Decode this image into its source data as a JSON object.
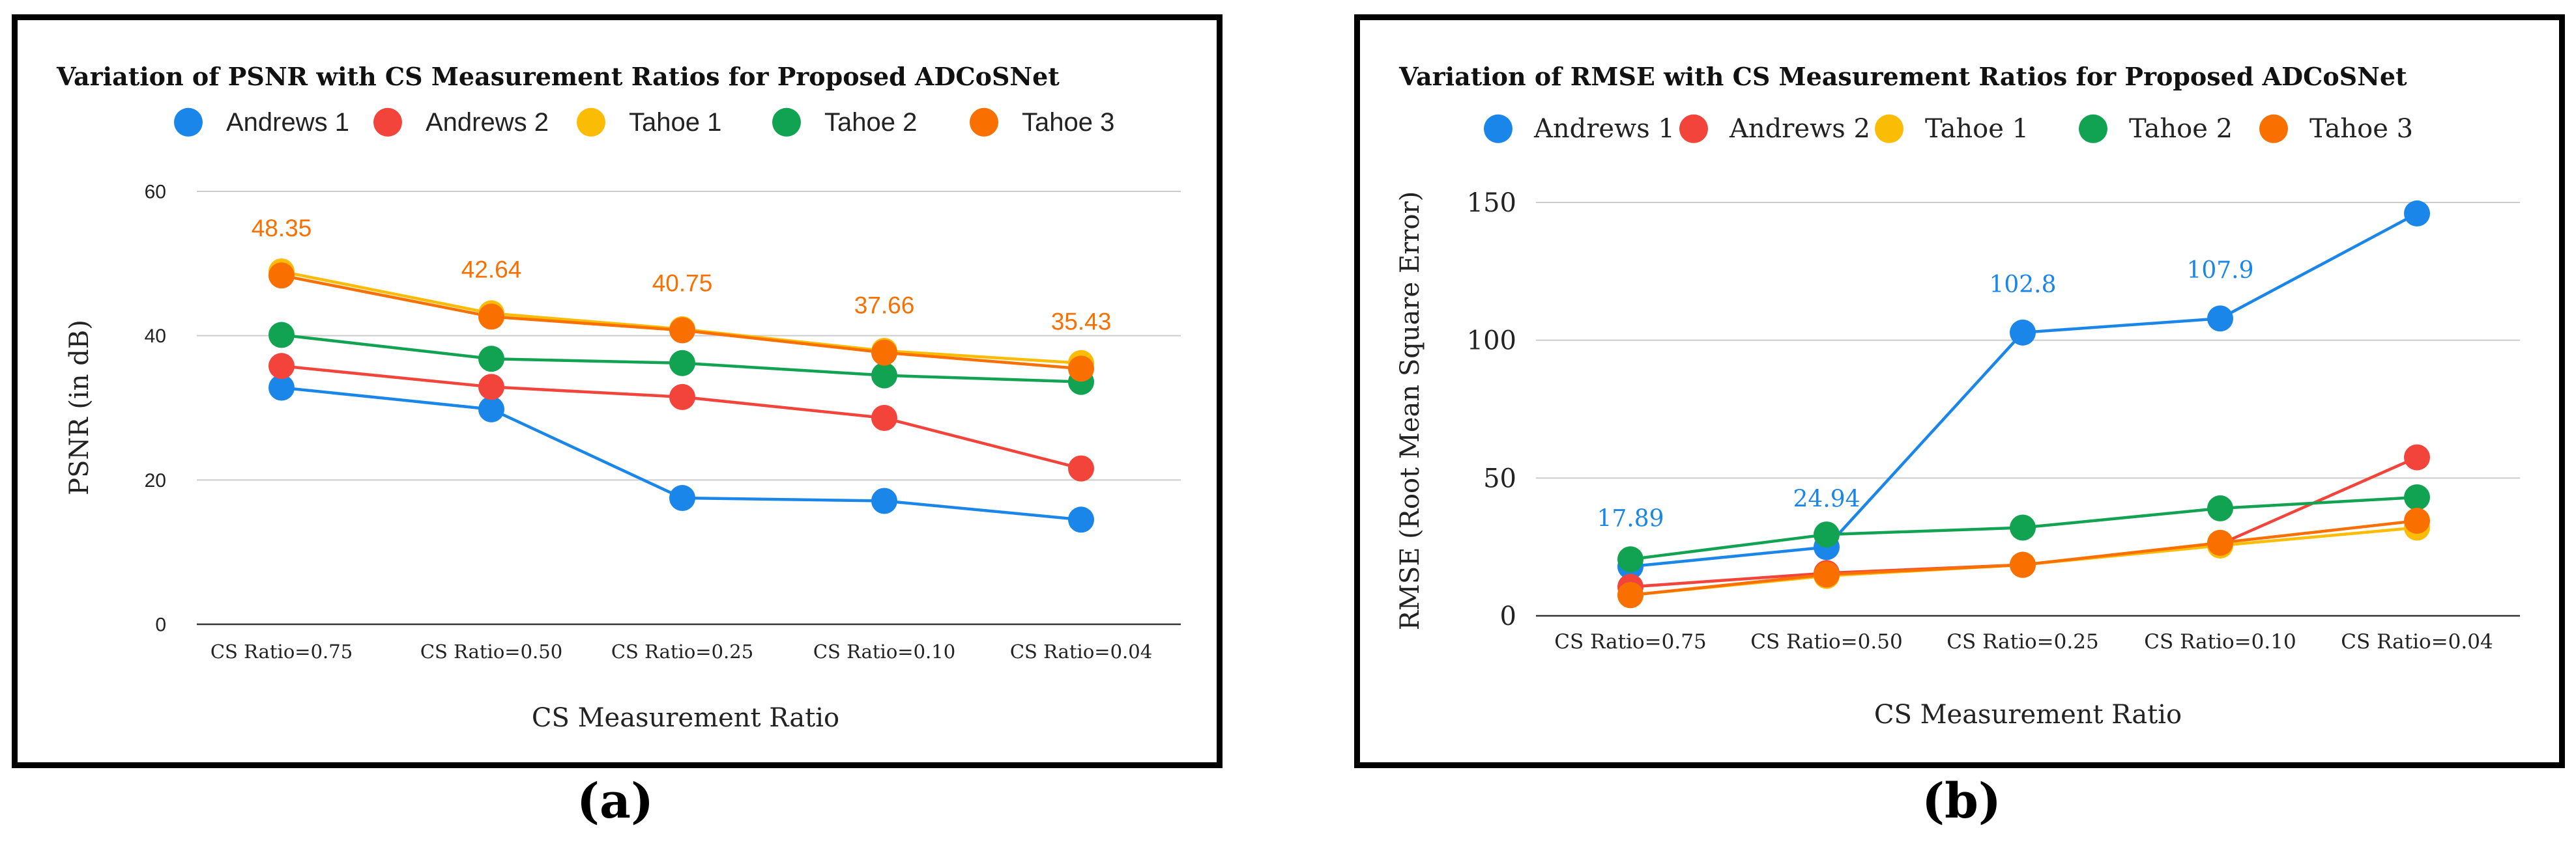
{
  "colors": {
    "Andrews 1": "#1a86ea",
    "Andrews 2": "#f2443a",
    "Tahoe 1": "#fbbc05",
    "Tahoe 2": "#11a352",
    "Tahoe 3": "#fa7000"
  },
  "chart_data": [
    {
      "type": "line",
      "title": "Variation of PSNR with CS Measurement Ratios for Proposed ADCoSNet",
      "xlabel": "CS Measurement Ratio",
      "ylabel": "PSNR (in dB)",
      "ylim": [
        0,
        60
      ],
      "yticks": [
        0,
        20,
        40,
        60
      ],
      "grid": true,
      "legend_position": "top",
      "categories": [
        "CS Ratio=0.75",
        "CS Ratio=0.50",
        "CS Ratio=0.25",
        "CS Ratio=0.10",
        "CS Ratio=0.04"
      ],
      "series": [
        {
          "name": "Andrews 1",
          "values": [
            32.8,
            29.8,
            17.5,
            17.1,
            14.5
          ]
        },
        {
          "name": "Andrews 2",
          "values": [
            35.8,
            32.9,
            31.5,
            28.6,
            21.6
          ]
        },
        {
          "name": "Tahoe 1",
          "values": [
            48.9,
            43.1,
            40.9,
            37.9,
            36.2
          ]
        },
        {
          "name": "Tahoe 2",
          "values": [
            40.1,
            36.8,
            36.2,
            34.5,
            33.6
          ]
        },
        {
          "name": "Tahoe 3",
          "values": [
            48.35,
            42.64,
            40.75,
            37.66,
            35.43
          ]
        }
      ],
      "data_labels": [
        {
          "series": "Tahoe 3",
          "index": 0,
          "text": "48.35"
        },
        {
          "series": "Tahoe 3",
          "index": 1,
          "text": "42.64"
        },
        {
          "series": "Tahoe 3",
          "index": 2,
          "text": "40.75"
        },
        {
          "series": "Tahoe 3",
          "index": 3,
          "text": "37.66"
        },
        {
          "series": "Tahoe 3",
          "index": 4,
          "text": "35.43"
        }
      ],
      "panel_label": "(a)"
    },
    {
      "type": "line",
      "title": "Variation of RMSE with CS Measurement Ratios for Proposed ADCoSNet",
      "xlabel": "CS Measurement Ratio",
      "ylabel": "RMSE (Root Mean Square Error)",
      "ylim": [
        0,
        150
      ],
      "yticks": [
        0,
        50,
        100,
        150
      ],
      "grid": true,
      "legend_position": "top",
      "categories": [
        "CS Ratio=0.75",
        "CS Ratio=0.50",
        "CS Ratio=0.25",
        "CS Ratio=0.10",
        "CS Ratio=0.04"
      ],
      "series": [
        {
          "name": "Andrews 1",
          "values": [
            17.89,
            24.94,
            102.8,
            107.9,
            146
          ]
        },
        {
          "name": "Andrews 2",
          "values": [
            10.5,
            15.5,
            18.5,
            26,
            57.5
          ]
        },
        {
          "name": "Tahoe 1",
          "values": [
            7.5,
            14.5,
            18.5,
            25.5,
            32
          ]
        },
        {
          "name": "Tahoe 2",
          "values": [
            20.5,
            29.5,
            32,
            39,
            43
          ]
        },
        {
          "name": "Tahoe 3",
          "values": [
            7.5,
            15,
            18.5,
            26.5,
            34.5
          ]
        }
      ],
      "data_labels": [
        {
          "series": "Andrews 1",
          "index": 0,
          "text": "17.89"
        },
        {
          "series": "Andrews 1",
          "index": 1,
          "text": "24.94"
        },
        {
          "series": "Andrews 1",
          "index": 2,
          "text": "102.8"
        },
        {
          "series": "Andrews 1",
          "index": 3,
          "text": "107.9"
        }
      ],
      "panel_label": "(b)"
    }
  ]
}
